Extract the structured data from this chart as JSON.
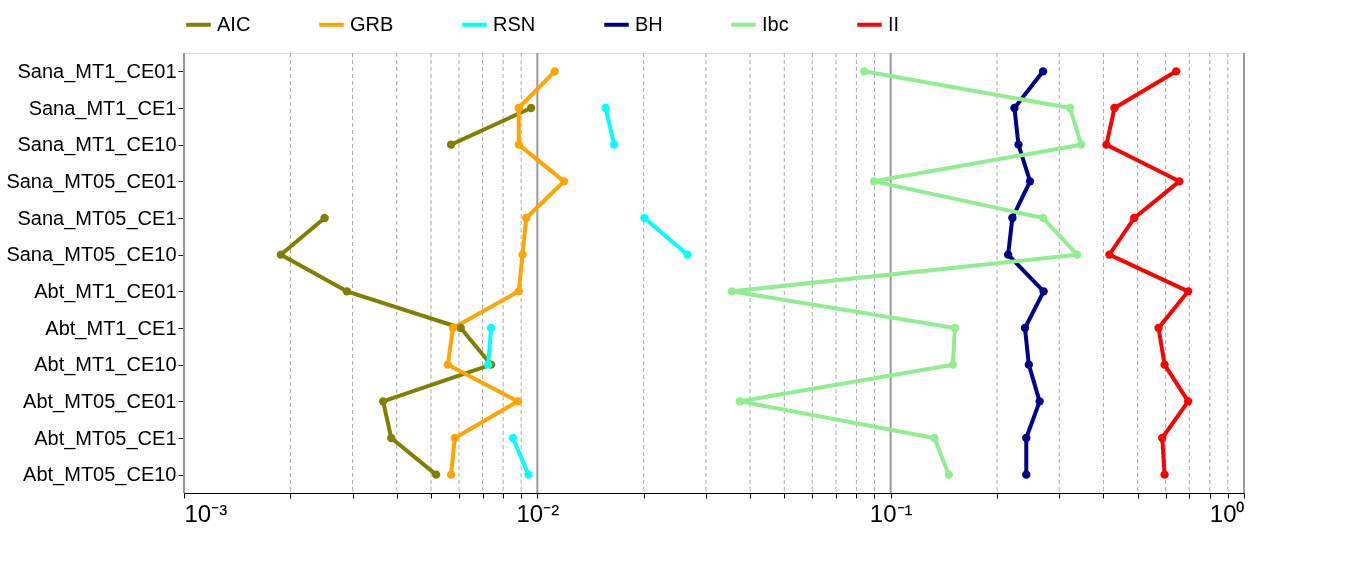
{
  "chart_data": {
    "type": "line",
    "categories": [
      "Sana_MT1_CE01",
      "Sana_MT1_CE1",
      "Sana_MT1_CE10",
      "Sana_MT05_CE01",
      "Sana_MT05_CE1",
      "Sana_MT05_CE10",
      "Abt_MT1_CE01",
      "Abt_MT1_CE1",
      "Abt_MT1_CE10",
      "Abt_MT05_CE01",
      "Abt_MT05_CE1",
      "Abt_MT05_CE10"
    ],
    "orientation": "horizontal",
    "log": "x",
    "xlim": [
      0.001,
      1
    ],
    "xticks": [
      {
        "value": 0.001,
        "label": "10⁻³"
      },
      {
        "value": 0.002,
        "label": null
      },
      {
        "value": 0.003,
        "label": null
      },
      {
        "value": 0.004,
        "label": null
      },
      {
        "value": 0.005,
        "label": null
      },
      {
        "value": 0.006,
        "label": null
      },
      {
        "value": 0.007,
        "label": null
      },
      {
        "value": 0.008,
        "label": null
      },
      {
        "value": 0.009,
        "label": null
      },
      {
        "value": 0.01,
        "label": "10⁻²"
      },
      {
        "value": 0.02,
        "label": null
      },
      {
        "value": 0.03,
        "label": null
      },
      {
        "value": 0.04,
        "label": null
      },
      {
        "value": 0.05,
        "label": null
      },
      {
        "value": 0.06,
        "label": null
      },
      {
        "value": 0.07,
        "label": null
      },
      {
        "value": 0.08,
        "label": null
      },
      {
        "value": 0.09,
        "label": null
      },
      {
        "value": 0.1,
        "label": "10⁻¹"
      },
      {
        "value": 0.2,
        "label": null
      },
      {
        "value": 0.3,
        "label": null
      },
      {
        "value": 0.4,
        "label": null
      },
      {
        "value": 0.5,
        "label": null
      },
      {
        "value": 0.6,
        "label": null
      },
      {
        "value": 0.7,
        "label": null
      },
      {
        "value": 0.8,
        "label": null
      },
      {
        "value": 0.9,
        "label": null
      },
      {
        "value": 1,
        "label": "10⁰"
      }
    ],
    "grid": "x",
    "legend": "top",
    "marker": "circle",
    "line_style": "solid",
    "series": [
      {
        "name": "AIC",
        "color": "#808000",
        "values": [
          null,
          0.0096,
          0.0057,
          null,
          0.0025,
          0.00188,
          0.00289,
          0.00607,
          0.0074,
          0.00366,
          0.00386,
          0.00517
        ]
      },
      {
        "name": "GRB",
        "color": "#ffa500",
        "values": [
          0.0112,
          0.00886,
          0.00886,
          0.0119,
          0.0093,
          0.00908,
          0.00886,
          0.00577,
          0.00558,
          0.00881,
          0.00584,
          0.0057
        ]
      },
      {
        "name": "RSN",
        "color": "#00ffff",
        "values": [
          null,
          0.0156,
          0.0165,
          null,
          0.0201,
          0.0266,
          null,
          0.0074,
          0.00726,
          null,
          0.00853,
          0.00944
        ]
      },
      {
        "name": "BH",
        "color": "#00008b",
        "values": [
          0.27,
          0.224,
          0.23,
          0.248,
          0.221,
          0.215,
          0.271,
          0.24,
          0.246,
          0.264,
          0.242,
          0.242
        ]
      },
      {
        "name": "Ibc",
        "color": "#90ee90",
        "values": [
          0.0841,
          0.322,
          0.346,
          0.0897,
          0.27,
          0.337,
          0.0355,
          0.152,
          0.15,
          0.0374,
          0.133,
          0.146
        ]
      },
      {
        "name": "II",
        "color": "#ff0000",
        "values": [
          0.643,
          0.43,
          0.408,
          0.656,
          0.489,
          0.416,
          0.695,
          0.573,
          0.596,
          0.695,
          0.587,
          0.596
        ]
      }
    ]
  }
}
